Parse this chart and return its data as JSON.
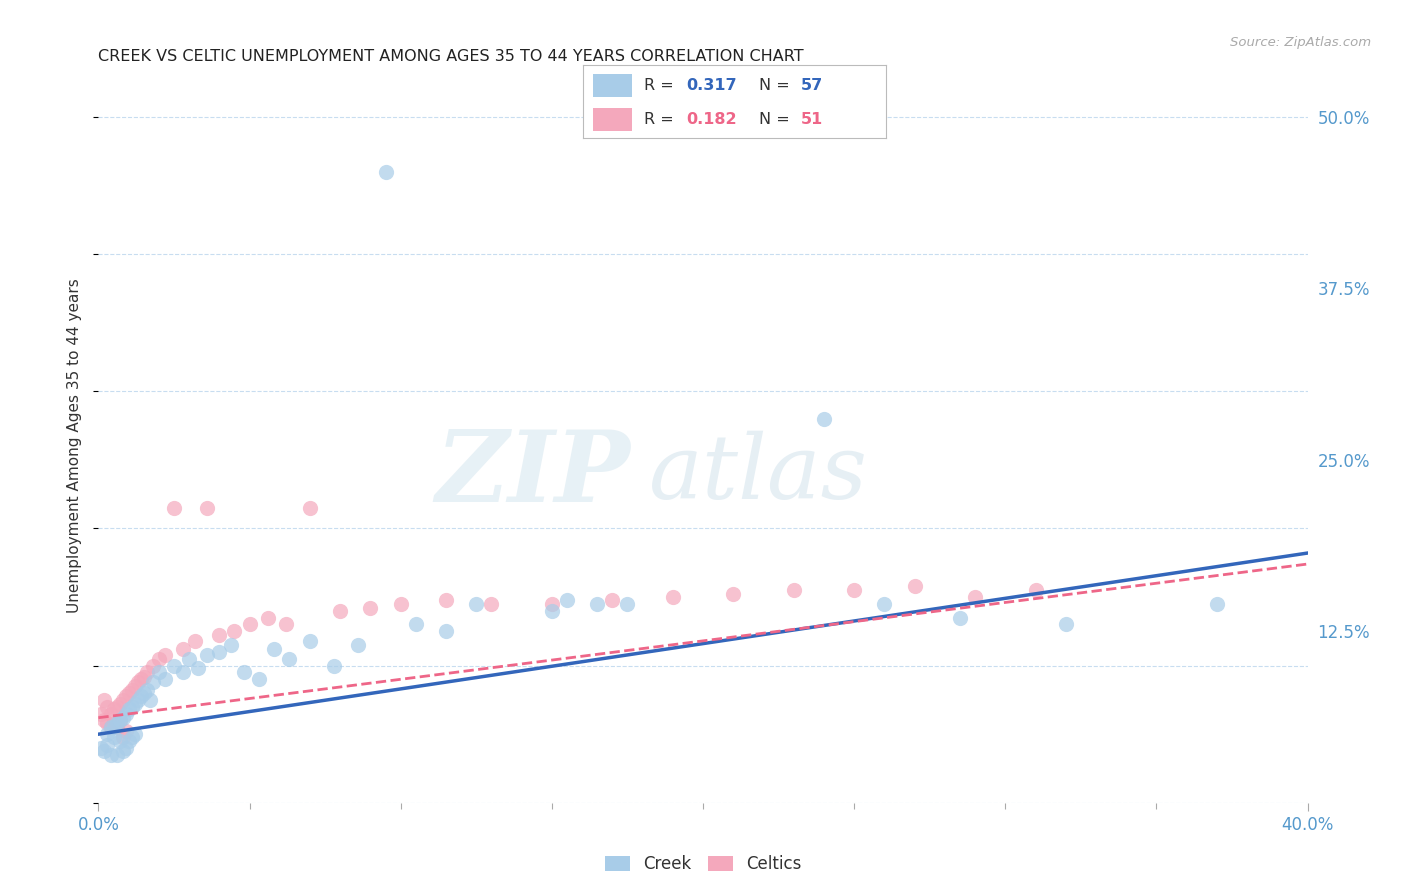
{
  "title": "CREEK VS CELTIC UNEMPLOYMENT AMONG AGES 35 TO 44 YEARS CORRELATION CHART",
  "source": "Source: ZipAtlas.com",
  "ylabel": "Unemployment Among Ages 35 to 44 years",
  "xlim": [
    0.0,
    0.4
  ],
  "ylim": [
    0.0,
    0.52
  ],
  "xticks_major": [
    0.0,
    0.4
  ],
  "xtick_labels_major": [
    "0.0%",
    "40.0%"
  ],
  "xticks_minor": [
    0.05,
    0.1,
    0.15,
    0.2,
    0.25,
    0.3,
    0.35
  ],
  "yticks_right": [
    0.125,
    0.25,
    0.375,
    0.5
  ],
  "ytick_labels_right": [
    "12.5%",
    "25.0%",
    "37.5%",
    "50.0%"
  ],
  "creek_R": "0.317",
  "creek_N": "57",
  "celtics_R": "0.182",
  "celtics_N": "51",
  "creek_color": "#a8cce8",
  "celtics_color": "#f4a8bc",
  "creek_line_color": "#3366bb",
  "celtics_line_color": "#ee6688",
  "background_color": "#ffffff",
  "creek_x": [
    0.001,
    0.002,
    0.003,
    0.003,
    0.004,
    0.004,
    0.005,
    0.005,
    0.006,
    0.006,
    0.007,
    0.007,
    0.008,
    0.008,
    0.009,
    0.009,
    0.01,
    0.01,
    0.011,
    0.011,
    0.012,
    0.012,
    0.013,
    0.014,
    0.015,
    0.016,
    0.017,
    0.018,
    0.02,
    0.022,
    0.025,
    0.028,
    0.03,
    0.033,
    0.036,
    0.04,
    0.044,
    0.048,
    0.053,
    0.058,
    0.063,
    0.07,
    0.078,
    0.086,
    0.095,
    0.105,
    0.115,
    0.125,
    0.15,
    0.155,
    0.165,
    0.175,
    0.24,
    0.26,
    0.285,
    0.32,
    0.37
  ],
  "creek_y": [
    0.04,
    0.038,
    0.05,
    0.042,
    0.055,
    0.035,
    0.055,
    0.048,
    0.058,
    0.035,
    0.06,
    0.045,
    0.062,
    0.038,
    0.065,
    0.04,
    0.068,
    0.045,
    0.07,
    0.048,
    0.072,
    0.05,
    0.075,
    0.078,
    0.08,
    0.082,
    0.075,
    0.088,
    0.095,
    0.09,
    0.1,
    0.095,
    0.105,
    0.098,
    0.108,
    0.11,
    0.115,
    0.095,
    0.09,
    0.112,
    0.105,
    0.118,
    0.1,
    0.115,
    0.46,
    0.13,
    0.125,
    0.145,
    0.14,
    0.148,
    0.145,
    0.145,
    0.28,
    0.145,
    0.135,
    0.13,
    0.145
  ],
  "celtics_x": [
    0.001,
    0.002,
    0.002,
    0.003,
    0.003,
    0.004,
    0.004,
    0.005,
    0.005,
    0.006,
    0.006,
    0.007,
    0.007,
    0.008,
    0.008,
    0.009,
    0.009,
    0.01,
    0.011,
    0.012,
    0.013,
    0.014,
    0.015,
    0.016,
    0.018,
    0.02,
    0.022,
    0.025,
    0.028,
    0.032,
    0.036,
    0.04,
    0.045,
    0.05,
    0.056,
    0.062,
    0.07,
    0.08,
    0.09,
    0.1,
    0.115,
    0.13,
    0.15,
    0.17,
    0.19,
    0.21,
    0.23,
    0.25,
    0.27,
    0.29,
    0.31
  ],
  "celtics_y": [
    0.065,
    0.06,
    0.075,
    0.058,
    0.07,
    0.065,
    0.055,
    0.068,
    0.058,
    0.07,
    0.055,
    0.072,
    0.06,
    0.075,
    0.048,
    0.078,
    0.052,
    0.08,
    0.082,
    0.085,
    0.088,
    0.09,
    0.092,
    0.095,
    0.1,
    0.105,
    0.108,
    0.215,
    0.112,
    0.118,
    0.215,
    0.122,
    0.125,
    0.13,
    0.135,
    0.13,
    0.215,
    0.14,
    0.142,
    0.145,
    0.148,
    0.145,
    0.145,
    0.148,
    0.15,
    0.152,
    0.155,
    0.155,
    0.158,
    0.15,
    0.155
  ]
}
